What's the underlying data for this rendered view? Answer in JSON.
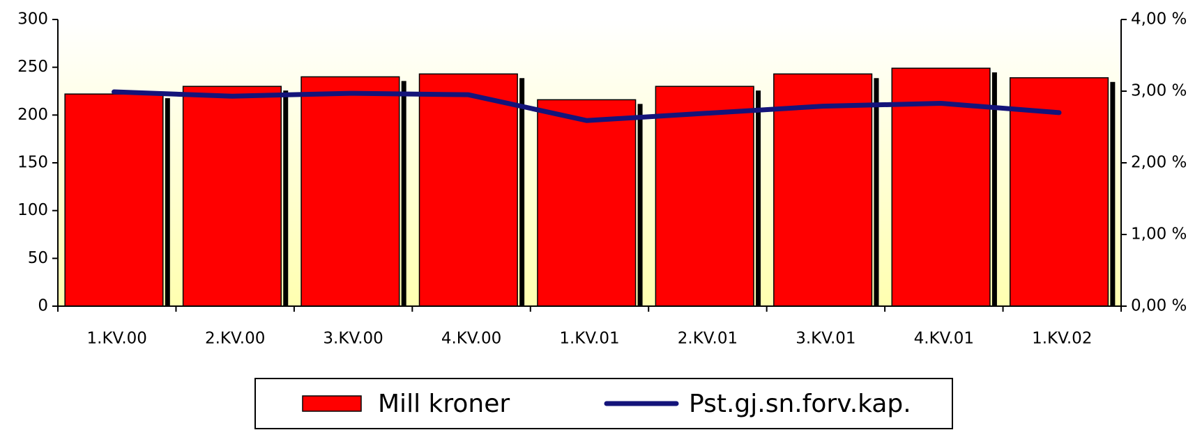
{
  "chart_data": {
    "type": "bar_line",
    "categories": [
      "1.KV.00",
      "2.KV.00",
      "3.KV.00",
      "4.KV.00",
      "1.KV.01",
      "2.KV.01",
      "3.KV.01",
      "4.KV.01",
      "1.KV.02"
    ],
    "series": [
      {
        "name": "Mill kroner",
        "type": "bar",
        "color": "#ff0000",
        "values": [
          222,
          230,
          240,
          243,
          216,
          230,
          243,
          249,
          239
        ]
      },
      {
        "name": "Pst.gj.sn.forv.kap.",
        "type": "line",
        "color": "#14147a",
        "axis": "y2",
        "values": [
          2.99,
          2.93,
          2.97,
          2.95,
          2.59,
          2.69,
          2.79,
          2.83,
          2.7
        ]
      }
    ],
    "ylim": [
      0,
      300
    ],
    "yticks": [
      0,
      50,
      100,
      150,
      200,
      250,
      300
    ],
    "y2lim": [
      0,
      4
    ],
    "y2ticks": [
      {
        "value": 0,
        "label": "0,00 %"
      },
      {
        "value": 1,
        "label": "1,00 %"
      },
      {
        "value": 2,
        "label": "2,00 %"
      },
      {
        "value": 3,
        "label": "3,00 %"
      },
      {
        "value": 4,
        "label": "4,00 %"
      }
    ],
    "legend": "bottom"
  }
}
